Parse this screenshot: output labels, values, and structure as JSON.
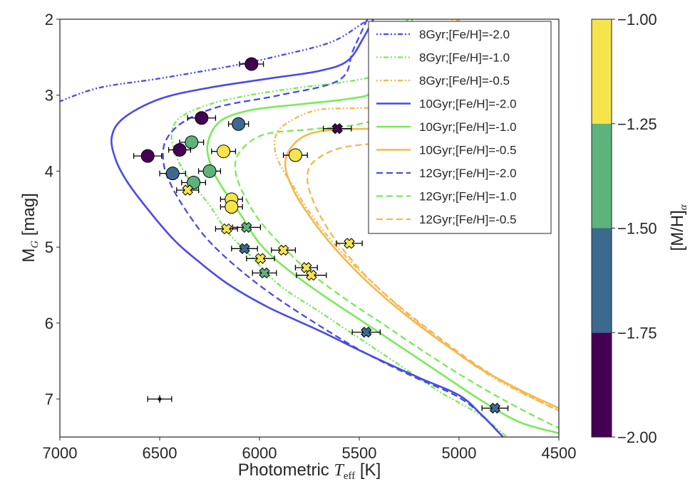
{
  "chart_data": {
    "type": "scatter",
    "xlabel_prefix": "Photometric ",
    "xlabel_symbol": "T",
    "xlabel_subscript": "eff",
    "xlabel_suffix": " [K]",
    "ylabel_main": "M",
    "ylabel_subscript": "G",
    "ylabel_suffix": " [mag]",
    "xlim": [
      7000,
      4500
    ],
    "ylim": [
      7.5,
      2.0
    ],
    "xticks": [
      7000,
      6500,
      6000,
      5500,
      5000,
      4500
    ],
    "xtick_labels": [
      "7000",
      "6500",
      "6000",
      "5500",
      "5000",
      "4500"
    ],
    "yticks": [
      2,
      3,
      4,
      5,
      6,
      7
    ],
    "ytick_labels": [
      "2",
      "3",
      "4",
      "5",
      "6",
      "7"
    ],
    "colorbar": {
      "label_main": "[M/H]",
      "label_subscript": "α",
      "range": [
        -2.0,
        -1.0
      ],
      "ticks": [
        -2.0,
        -1.75,
        -1.5,
        -1.25,
        -1.0
      ],
      "tick_labels": [
        "−2.00",
        "−1.75",
        "−1.50",
        "−1.25",
        "−1.00"
      ],
      "bins": [
        {
          "from": -2.0,
          "to": -1.75,
          "color": "#440154"
        },
        {
          "from": -1.75,
          "to": -1.5,
          "color": "#3b6a8e"
        },
        {
          "from": -1.5,
          "to": -1.25,
          "color": "#5db37b"
        },
        {
          "from": -1.25,
          "to": -1.0,
          "color": "#f5e44c"
        }
      ]
    },
    "legend_position": "top-right",
    "colors": {
      "feh_-2.0": "#4a4ae8",
      "feh_-1.0": "#79eb55",
      "feh_-0.5": "#f5b84c"
    },
    "isochrones": [
      {
        "name": "8Gyr;[Fe/H]=-2.0",
        "color": "#4a4ae8",
        "dash": "dashdot",
        "points": [
          [
            5380,
            1.9
          ],
          [
            5480,
            2.05
          ],
          [
            5640,
            2.3
          ],
          [
            5900,
            2.48
          ],
          [
            6150,
            2.62
          ],
          [
            6500,
            2.78
          ],
          [
            6800,
            2.9
          ],
          [
            7000,
            3.08
          ]
        ]
      },
      {
        "name": "8Gyr;[Fe/H]=-1.0",
        "color": "#79eb55",
        "dash": "dashdot",
        "points": [
          [
            5240,
            1.95
          ],
          [
            5300,
            2.2
          ],
          [
            5350,
            2.5
          ],
          [
            5400,
            2.72
          ],
          [
            5560,
            2.82
          ],
          [
            5800,
            2.9
          ],
          [
            6050,
            3.0
          ],
          [
            6250,
            3.12
          ],
          [
            6400,
            3.3
          ],
          [
            6440,
            3.52
          ],
          [
            6420,
            3.78
          ],
          [
            6380,
            4.0
          ],
          [
            6340,
            4.15
          ],
          [
            6250,
            4.45
          ],
          [
            6160,
            4.8
          ],
          [
            6050,
            5.1
          ],
          [
            5900,
            5.5
          ],
          [
            5700,
            5.85
          ],
          [
            5500,
            6.2
          ],
          [
            5300,
            6.55
          ],
          [
            5100,
            6.9
          ],
          [
            4900,
            7.2
          ],
          [
            4760,
            7.5
          ]
        ]
      },
      {
        "name": "8Gyr;[Fe/H]=-0.5",
        "color": "#f5b84c",
        "dash": "dashdot",
        "points": [
          [
            5030,
            1.95
          ],
          [
            5050,
            2.3
          ],
          [
            5080,
            2.7
          ],
          [
            5130,
            3.0
          ],
          [
            5300,
            3.15
          ],
          [
            5520,
            3.17
          ],
          [
            5720,
            3.2
          ],
          [
            5870,
            3.38
          ],
          [
            5920,
            3.55
          ],
          [
            5920,
            3.75
          ],
          [
            5890,
            3.95
          ],
          [
            5830,
            4.2
          ],
          [
            5760,
            4.5
          ],
          [
            5660,
            4.85
          ],
          [
            5540,
            5.2
          ],
          [
            5400,
            5.55
          ],
          [
            5250,
            5.9
          ],
          [
            5080,
            6.25
          ],
          [
            4900,
            6.6
          ],
          [
            4700,
            6.9
          ],
          [
            4500,
            7.15
          ]
        ]
      },
      {
        "name": "10Gyr;[Fe/H]=-2.0",
        "color": "#4a4ae8",
        "dash": "solid",
        "points": [
          [
            5420,
            1.95
          ],
          [
            5480,
            2.25
          ],
          [
            5560,
            2.55
          ],
          [
            5700,
            2.68
          ],
          [
            5950,
            2.78
          ],
          [
            6250,
            2.9
          ],
          [
            6500,
            3.05
          ],
          [
            6680,
            3.3
          ],
          [
            6740,
            3.55
          ],
          [
            6720,
            3.85
          ],
          [
            6660,
            4.15
          ],
          [
            6560,
            4.5
          ],
          [
            6430,
            4.9
          ],
          [
            6300,
            5.2
          ],
          [
            6150,
            5.5
          ],
          [
            5950,
            5.8
          ],
          [
            5700,
            6.1
          ],
          [
            5450,
            6.42
          ],
          [
            5200,
            6.72
          ],
          [
            5000,
            6.95
          ],
          [
            4890,
            7.2
          ],
          [
            4780,
            7.5
          ]
        ]
      },
      {
        "name": "10Gyr;[Fe/H]=-1.0",
        "color": "#79eb55",
        "dash": "solid",
        "points": [
          [
            5250,
            1.95
          ],
          [
            5300,
            2.25
          ],
          [
            5360,
            2.55
          ],
          [
            5430,
            2.95
          ],
          [
            5560,
            3.05
          ],
          [
            5800,
            3.12
          ],
          [
            6050,
            3.2
          ],
          [
            6200,
            3.35
          ],
          [
            6260,
            3.65
          ],
          [
            6240,
            3.95
          ],
          [
            6190,
            4.2
          ],
          [
            6100,
            4.55
          ],
          [
            6000,
            4.95
          ],
          [
            5880,
            5.25
          ],
          [
            5700,
            5.6
          ],
          [
            5500,
            5.95
          ],
          [
            5300,
            6.3
          ],
          [
            5100,
            6.65
          ],
          [
            4900,
            7.0
          ],
          [
            4700,
            7.3
          ],
          [
            4500,
            7.45
          ]
        ]
      },
      {
        "name": "10Gyr;[Fe/H]=-0.5",
        "color": "#f5b84c",
        "dash": "solid",
        "points": [
          [
            5010,
            2.0
          ],
          [
            5030,
            2.4
          ],
          [
            5060,
            2.8
          ],
          [
            5130,
            3.4
          ],
          [
            5350,
            3.44
          ],
          [
            5600,
            3.45
          ],
          [
            5760,
            3.52
          ],
          [
            5850,
            3.72
          ],
          [
            5870,
            3.95
          ],
          [
            5830,
            4.25
          ],
          [
            5760,
            4.55
          ],
          [
            5660,
            4.9
          ],
          [
            5540,
            5.25
          ],
          [
            5400,
            5.6
          ],
          [
            5240,
            5.95
          ],
          [
            5060,
            6.3
          ],
          [
            4880,
            6.62
          ],
          [
            4680,
            6.9
          ],
          [
            4500,
            7.12
          ]
        ]
      },
      {
        "name": "12Gyr;[Fe/H]=-2.0",
        "color": "#4a4ae8",
        "dash": "dashed",
        "points": [
          [
            5460,
            2.0
          ],
          [
            5530,
            2.4
          ],
          [
            5600,
            2.8
          ],
          [
            5900,
            3.0
          ],
          [
            6200,
            3.15
          ],
          [
            6380,
            3.35
          ],
          [
            6470,
            3.6
          ],
          [
            6480,
            3.9
          ],
          [
            6440,
            4.2
          ],
          [
            6360,
            4.55
          ],
          [
            6260,
            4.9
          ],
          [
            6120,
            5.25
          ],
          [
            5950,
            5.6
          ],
          [
            5750,
            5.95
          ],
          [
            5500,
            6.35
          ],
          [
            5250,
            6.68
          ],
          [
            5020,
            6.95
          ],
          [
            4890,
            7.2
          ],
          [
            4780,
            7.5
          ]
        ]
      },
      {
        "name": "12Gyr;[Fe/H]=-1.0",
        "color": "#79eb55",
        "dash": "dashed",
        "points": [
          [
            5230,
            1.95
          ],
          [
            5260,
            2.3
          ],
          [
            5300,
            2.7
          ],
          [
            5340,
            3.2
          ],
          [
            5500,
            3.38
          ],
          [
            5750,
            3.45
          ],
          [
            5980,
            3.52
          ],
          [
            6100,
            3.75
          ],
          [
            6120,
            4.0
          ],
          [
            6080,
            4.3
          ],
          [
            6000,
            4.65
          ],
          [
            5880,
            5.0
          ],
          [
            5740,
            5.35
          ],
          [
            5560,
            5.7
          ],
          [
            5360,
            6.05
          ],
          [
            5150,
            6.42
          ],
          [
            4950,
            6.75
          ],
          [
            4750,
            7.05
          ],
          [
            4550,
            7.32
          ],
          [
            4500,
            7.38
          ]
        ]
      },
      {
        "name": "12Gyr;[Fe/H]=-0.5",
        "color": "#f5b84c",
        "dash": "dashed",
        "points": [
          [
            5000,
            2.0
          ],
          [
            5010,
            2.5
          ],
          [
            5030,
            3.0
          ],
          [
            5060,
            3.45
          ],
          [
            5200,
            3.58
          ],
          [
            5400,
            3.63
          ],
          [
            5600,
            3.7
          ],
          [
            5730,
            3.88
          ],
          [
            5760,
            4.1
          ],
          [
            5730,
            4.4
          ],
          [
            5660,
            4.75
          ],
          [
            5560,
            5.1
          ],
          [
            5440,
            5.45
          ],
          [
            5290,
            5.8
          ],
          [
            5120,
            6.15
          ],
          [
            4940,
            6.5
          ],
          [
            4750,
            6.82
          ],
          [
            4560,
            7.08
          ],
          [
            4500,
            7.15
          ]
        ]
      }
    ],
    "stars_circle": [
      {
        "teff": 6040,
        "mg": 2.59,
        "mh": -1.9,
        "xerr": 60,
        "color": "#440154"
      },
      {
        "teff": 6290,
        "mg": 3.3,
        "mh": -1.9,
        "xerr": 70,
        "color": "#440154"
      },
      {
        "teff": 6105,
        "mg": 3.38,
        "mh": -1.6,
        "xerr": 50,
        "color": "#3b6a8e"
      },
      {
        "teff": 6340,
        "mg": 3.62,
        "mh": -1.4,
        "xerr": 60,
        "color": "#5db37b"
      },
      {
        "teff": 6400,
        "mg": 3.72,
        "mh": -1.9,
        "xerr": 55,
        "color": "#440154"
      },
      {
        "teff": 6560,
        "mg": 3.8,
        "mh": -1.9,
        "xerr": 70,
        "color": "#440154"
      },
      {
        "teff": 6180,
        "mg": 3.74,
        "mh": -1.1,
        "xerr": 60,
        "color": "#f5e44c"
      },
      {
        "teff": 5820,
        "mg": 3.79,
        "mh": -1.1,
        "xerr": 60,
        "color": "#f5e44c"
      },
      {
        "teff": 6250,
        "mg": 4.0,
        "mh": -1.4,
        "xerr": 55,
        "color": "#5db37b"
      },
      {
        "teff": 6435,
        "mg": 4.03,
        "mh": -1.6,
        "xerr": 65,
        "color": "#3b6a8e"
      },
      {
        "teff": 6330,
        "mg": 4.15,
        "mh": -1.4,
        "xerr": 60,
        "color": "#5db37b"
      },
      {
        "teff": 6140,
        "mg": 4.37,
        "mh": -1.1,
        "xerr": 55,
        "color": "#f5e44c"
      },
      {
        "teff": 6140,
        "mg": 4.47,
        "mh": -1.1,
        "xerr": 55,
        "color": "#f5e44c"
      }
    ],
    "stars_cross": [
      {
        "teff": 5610,
        "mg": 3.44,
        "mh": -1.9,
        "xerr": 70,
        "color": "#440154"
      },
      {
        "teff": 6360,
        "mg": 4.25,
        "mh": -1.1,
        "xerr": 55,
        "color": "#f5e44c"
      },
      {
        "teff": 6165,
        "mg": 4.76,
        "mh": -1.1,
        "xerr": 55,
        "color": "#f5e44c"
      },
      {
        "teff": 6065,
        "mg": 4.74,
        "mh": -1.4,
        "xerr": 70,
        "color": "#5db37b"
      },
      {
        "teff": 5550,
        "mg": 4.95,
        "mh": -1.1,
        "xerr": 65,
        "color": "#f5e44c"
      },
      {
        "teff": 6075,
        "mg": 5.02,
        "mh": -1.6,
        "xerr": 65,
        "color": "#3b6a8e"
      },
      {
        "teff": 5880,
        "mg": 5.04,
        "mh": -1.1,
        "xerr": 60,
        "color": "#f5e44c"
      },
      {
        "teff": 5995,
        "mg": 5.15,
        "mh": -1.1,
        "xerr": 70,
        "color": "#f5e44c"
      },
      {
        "teff": 5765,
        "mg": 5.27,
        "mh": -1.1,
        "xerr": 55,
        "color": "#f5e44c"
      },
      {
        "teff": 5975,
        "mg": 5.34,
        "mh": -1.4,
        "xerr": 60,
        "color": "#5db37b"
      },
      {
        "teff": 5740,
        "mg": 5.37,
        "mh": -1.1,
        "xerr": 75,
        "color": "#f5e44c"
      },
      {
        "teff": 5465,
        "mg": 6.12,
        "mh": -1.6,
        "xerr": 70,
        "color": "#3b6a8e"
      },
      {
        "teff": 4820,
        "mg": 7.12,
        "mh": -1.6,
        "xerr": 65,
        "color": "#3b6a8e"
      }
    ],
    "reference_error": {
      "teff": 6500,
      "mg": 7.0,
      "xerr": 60,
      "yerr": 0.05
    }
  }
}
